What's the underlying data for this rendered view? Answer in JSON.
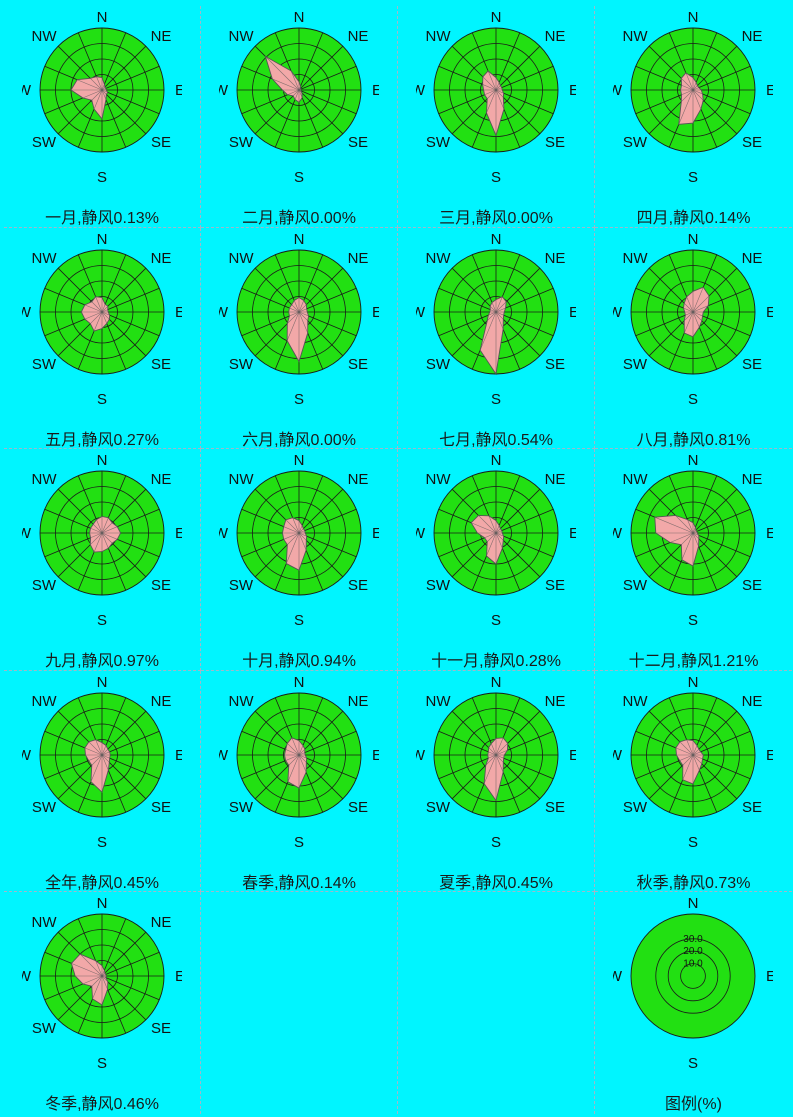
{
  "colors": {
    "background": "#00f5ff",
    "disc": "#22e012",
    "rose_fill": "#f2a8a8",
    "rose_stroke": "#555555",
    "grid_line": "#1a1a1a"
  },
  "directions_16": [
    "N",
    "NNE",
    "NE",
    "ENE",
    "E",
    "ESE",
    "SE",
    "SSE",
    "S",
    "SSW",
    "SW",
    "WSW",
    "W",
    "WNW",
    "NW",
    "NNW"
  ],
  "compass_labels": {
    "n": "N",
    "ne": "NE",
    "e": "E",
    "se": "SE",
    "s": "S",
    "sw": "SW",
    "w": "W",
    "nw": "NW"
  },
  "legend": {
    "caption": "图例(%)",
    "rings": [
      {
        "value": 10.0,
        "label": "10.0"
      },
      {
        "value": 20.0,
        "label": "20.0"
      },
      {
        "value": 30.0,
        "label": "30.0"
      }
    ],
    "labels": {
      "n": "N",
      "e": "E",
      "s": "S",
      "w": "W"
    }
  },
  "chart_data": [
    {
      "type": "wind-rose",
      "title": "一月",
      "calm_label": "静风",
      "calm_text": "0.13%",
      "calm_pct": 0.13,
      "rmax": 30,
      "values": [
        6,
        3,
        2,
        2,
        2,
        3,
        3,
        5,
        14,
        10,
        7,
        10,
        15,
        13,
        8,
        7
      ]
    },
    {
      "type": "wind-rose",
      "title": "二月",
      "calm_label": "静风",
      "calm_text": "0.00%",
      "calm_pct": 0.0,
      "rmax": 30,
      "values": [
        4,
        2,
        1,
        1,
        1,
        1,
        2,
        4,
        6,
        5,
        4,
        6,
        8,
        14,
        23,
        10
      ]
    },
    {
      "type": "wind-rose",
      "title": "三月",
      "calm_label": "静风",
      "calm_text": "0.00%",
      "calm_pct": 0.0,
      "rmax": 30,
      "values": [
        6,
        4,
        3,
        3,
        3,
        4,
        5,
        10,
        22,
        12,
        6,
        6,
        6,
        7,
        9,
        10
      ]
    },
    {
      "type": "wind-rose",
      "title": "四月",
      "calm_label": "静风",
      "calm_text": "0.14%",
      "calm_pct": 0.14,
      "rmax": 30,
      "values": [
        6,
        4,
        3,
        3,
        4,
        5,
        7,
        10,
        16,
        18,
        8,
        6,
        6,
        6,
        8,
        9
      ]
    },
    {
      "type": "wind-rose",
      "title": "五月",
      "calm_label": "静风",
      "calm_text": "0.27%",
      "calm_pct": 0.27,
      "rmax": 30,
      "values": [
        7,
        4,
        4,
        3,
        3,
        4,
        5,
        6,
        8,
        10,
        8,
        9,
        10,
        9,
        7,
        8
      ]
    },
    {
      "type": "wind-rose",
      "title": "六月",
      "calm_label": "静风",
      "calm_text": "0.00%",
      "calm_pct": 0.0,
      "rmax": 30,
      "values": [
        7,
        6,
        5,
        4,
        4,
        5,
        6,
        11,
        24,
        15,
        8,
        5,
        5,
        5,
        5,
        6
      ]
    },
    {
      "type": "wind-rose",
      "title": "七月",
      "calm_label": "静风",
      "calm_text": "0.54%",
      "calm_pct": 0.54,
      "rmax": 30,
      "values": [
        6,
        8,
        7,
        5,
        4,
        4,
        5,
        9,
        30,
        20,
        6,
        4,
        3,
        3,
        4,
        5
      ]
    },
    {
      "type": "wind-rose",
      "title": "八月",
      "calm_label": "静风",
      "calm_text": "0.81%",
      "calm_pct": 0.81,
      "rmax": 30,
      "values": [
        10,
        13,
        11,
        8,
        5,
        5,
        6,
        8,
        12,
        11,
        6,
        4,
        4,
        5,
        6,
        8
      ]
    },
    {
      "type": "wind-rose",
      "title": "九月",
      "calm_label": "静风",
      "calm_text": "0.97%",
      "calm_pct": 0.97,
      "rmax": 30,
      "values": [
        8,
        8,
        7,
        8,
        9,
        8,
        7,
        8,
        9,
        10,
        8,
        6,
        6,
        6,
        6,
        7
      ]
    },
    {
      "type": "wind-rose",
      "title": "十月",
      "calm_label": "静风",
      "calm_text": "0.94%",
      "calm_pct": 0.94,
      "rmax": 30,
      "values": [
        6,
        4,
        3,
        3,
        3,
        4,
        5,
        9,
        18,
        16,
        8,
        8,
        8,
        8,
        9,
        8
      ]
    },
    {
      "type": "wind-rose",
      "title": "十一月",
      "calm_label": "静风",
      "calm_text": "0.28%",
      "calm_pct": 0.28,
      "rmax": 30,
      "values": [
        6,
        4,
        3,
        3,
        3,
        4,
        5,
        8,
        15,
        12,
        6,
        6,
        9,
        13,
        12,
        9
      ]
    },
    {
      "type": "wind-rose",
      "title": "十二月",
      "calm_label": "静风",
      "calm_text": "1.21%",
      "calm_pct": 1.21,
      "rmax": 30,
      "values": [
        5,
        3,
        2,
        2,
        2,
        3,
        4,
        7,
        16,
        14,
        8,
        12,
        18,
        20,
        12,
        7
      ]
    },
    {
      "type": "wind-rose",
      "title": "全年",
      "calm_label": "静风",
      "calm_text": "0.45%",
      "calm_pct": 0.45,
      "rmax": 30,
      "values": [
        6,
        5,
        4,
        4,
        4,
        4,
        5,
        8,
        18,
        14,
        7,
        7,
        8,
        9,
        9,
        8
      ]
    },
    {
      "type": "wind-rose",
      "title": "春季",
      "calm_label": "静风",
      "calm_text": "0.14%",
      "calm_pct": 0.14,
      "rmax": 30,
      "values": [
        7,
        5,
        4,
        3,
        3,
        4,
        5,
        9,
        16,
        14,
        7,
        7,
        7,
        7,
        8,
        9
      ]
    },
    {
      "type": "wind-rose",
      "title": "夏季",
      "calm_label": "静风",
      "calm_text": "0.45%",
      "calm_pct": 0.45,
      "rmax": 30,
      "values": [
        8,
        9,
        8,
        6,
        4,
        4,
        5,
        9,
        22,
        15,
        7,
        4,
        4,
        4,
        5,
        6
      ]
    },
    {
      "type": "wind-rose",
      "title": "秋季",
      "calm_label": "静风",
      "calm_text": "0.73%",
      "calm_pct": 0.73,
      "rmax": 30,
      "values": [
        7,
        5,
        4,
        4,
        5,
        5,
        6,
        8,
        14,
        13,
        7,
        7,
        8,
        9,
        9,
        8
      ]
    },
    {
      "type": "wind-rose",
      "title": "冬季",
      "calm_label": "静风",
      "calm_text": "0.46%",
      "calm_pct": 0.46,
      "rmax": 30,
      "values": [
        5,
        3,
        2,
        2,
        2,
        2,
        4,
        7,
        14,
        12,
        7,
        10,
        13,
        16,
        15,
        8
      ]
    }
  ]
}
